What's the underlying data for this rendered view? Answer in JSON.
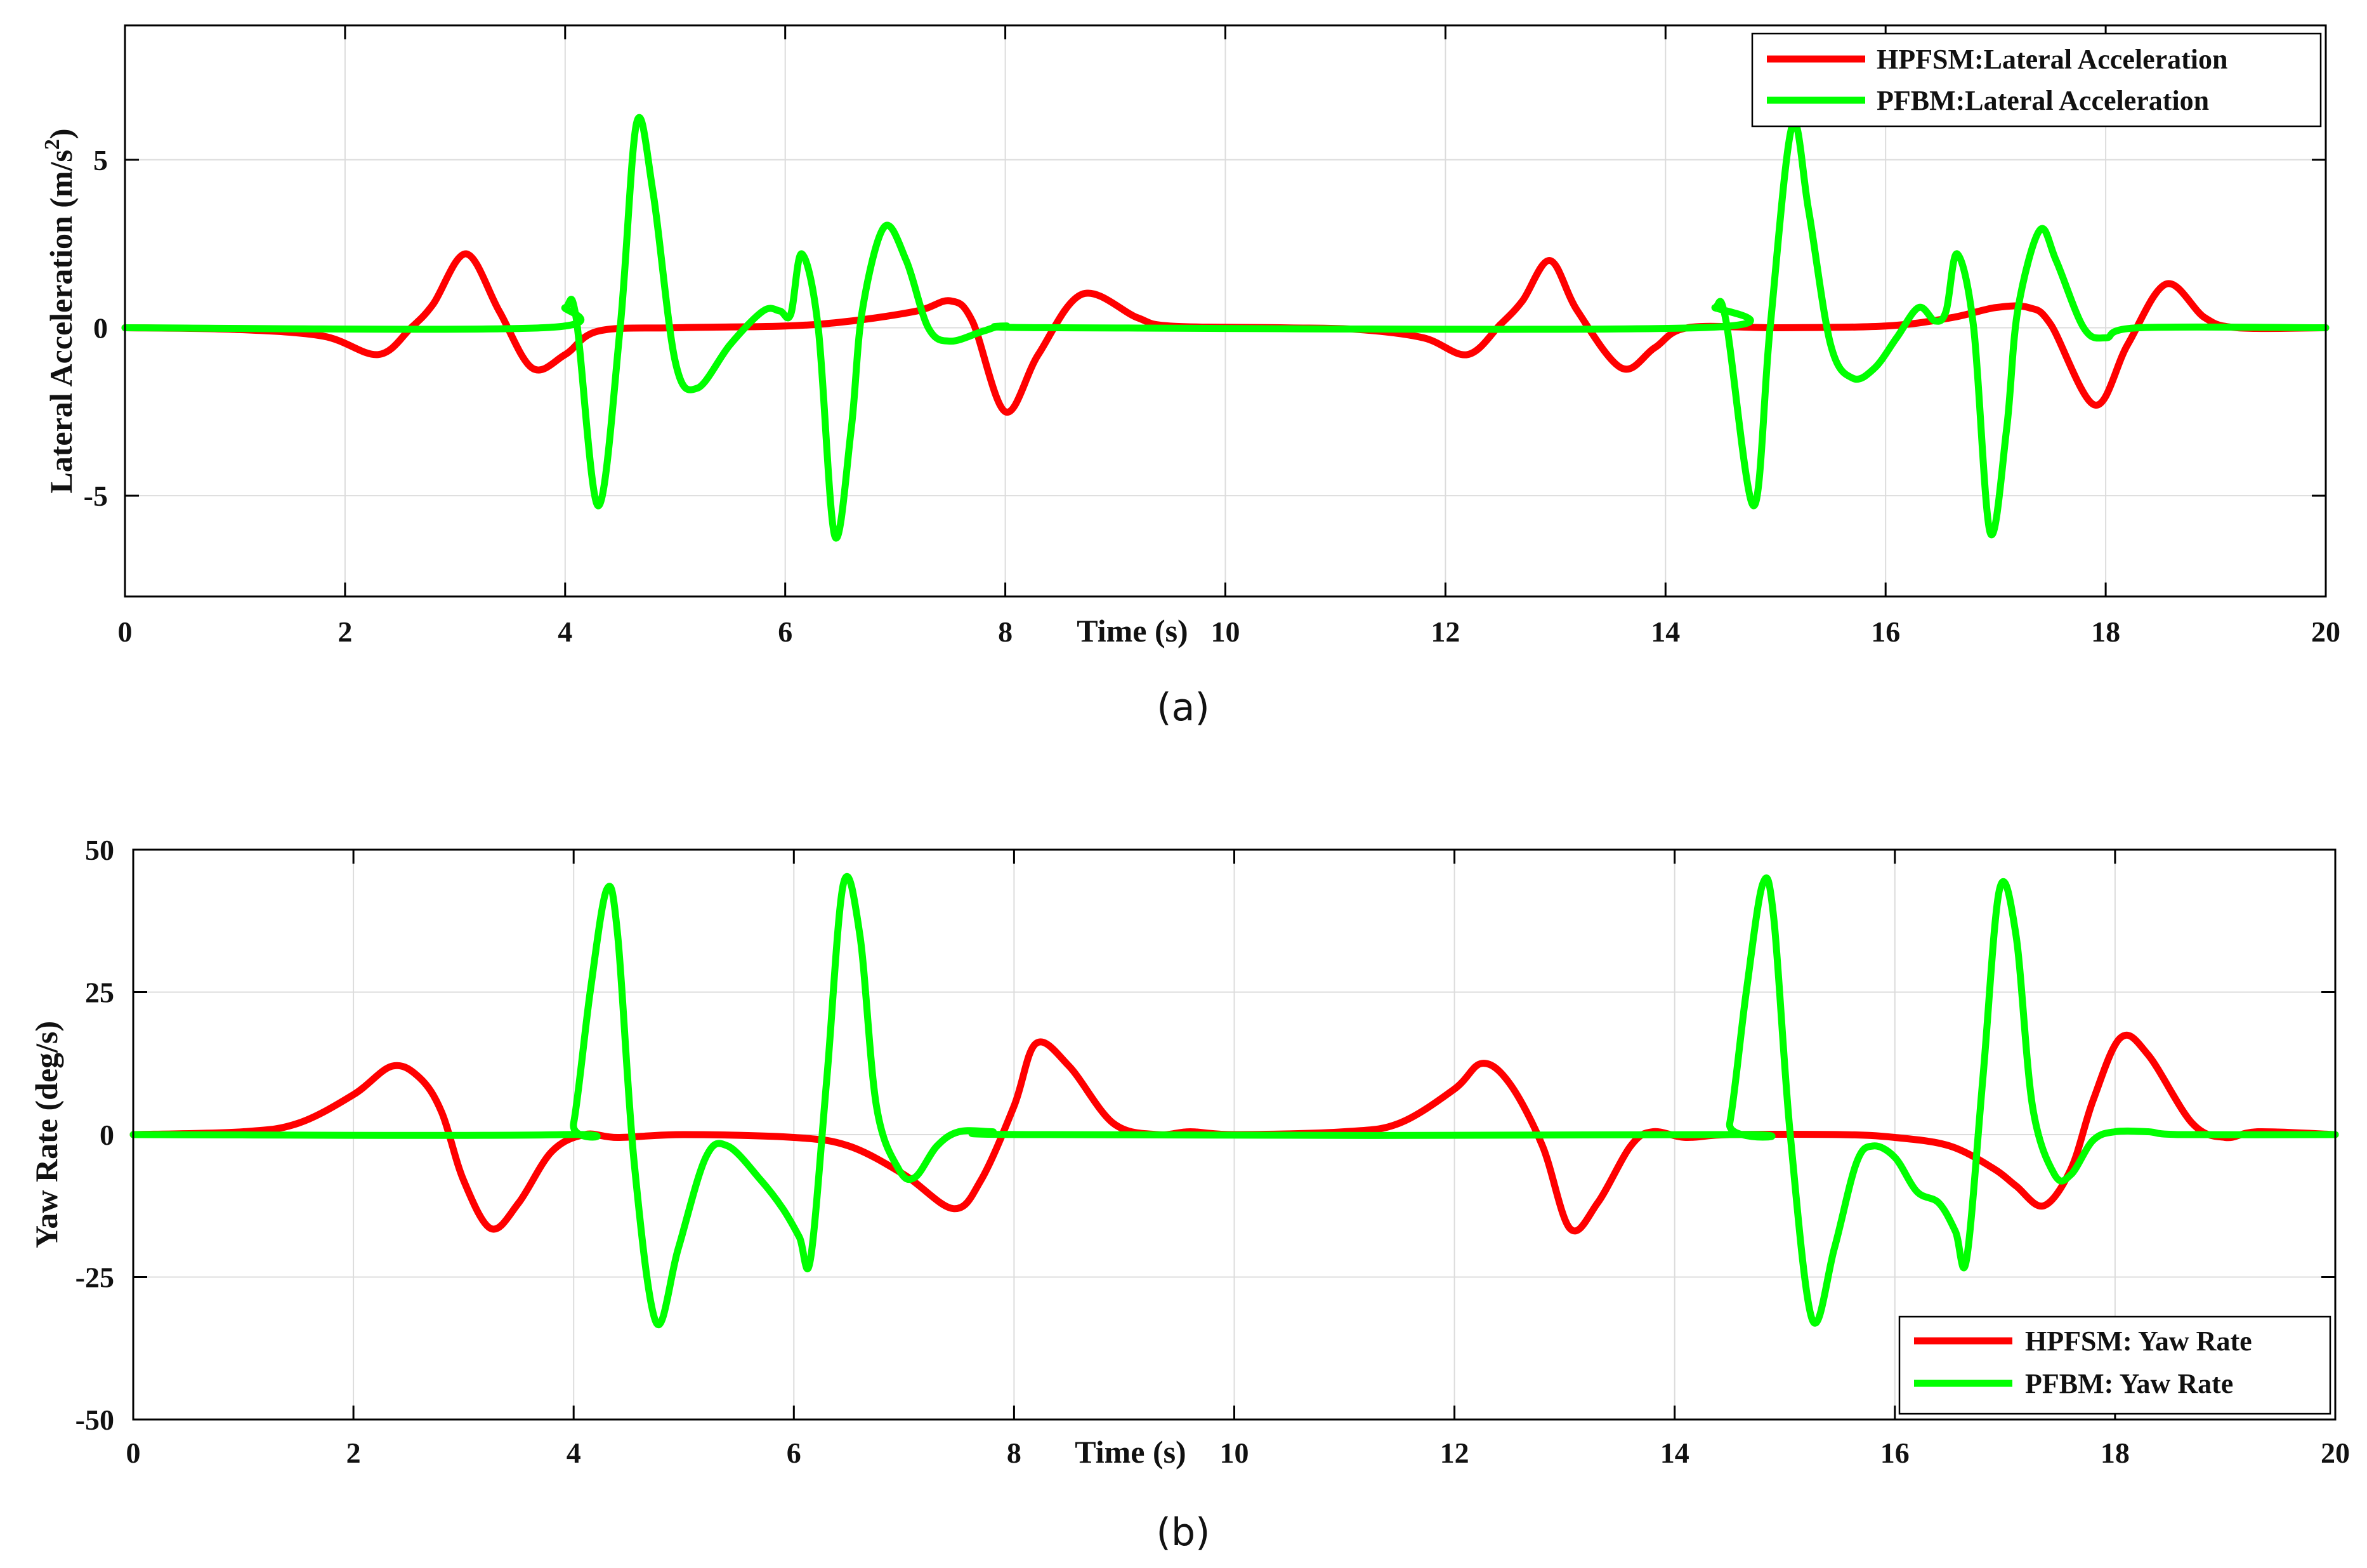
{
  "figure": {
    "caption_a": "(a)",
    "caption_b": "(b)"
  },
  "colors": {
    "hpfsm": "#ff0000",
    "pfbm": "#00ff00",
    "grid": "#dcdcdc",
    "axes": "#000000"
  },
  "chart_data": [
    {
      "type": "line",
      "id": "a",
      "title": "",
      "xlabel": "Time (s)",
      "ylabel_main": "Lateral Acceleration (m/s",
      "ylabel_sup": "2",
      "ylabel_end": ")",
      "xlim": [
        0,
        20
      ],
      "ylim": [
        -8,
        9
      ],
      "xticks": [
        0,
        2,
        4,
        6,
        8,
        10,
        12,
        14,
        16,
        18,
        20
      ],
      "yticks": [
        -5,
        0,
        5
      ],
      "ytick_labels": [
        "-5",
        "0",
        "5"
      ],
      "grid": true,
      "legend_position": "top-right",
      "series": [
        {
          "name": "HPFSM:Lateral Acceleration",
          "color": "#ff0000",
          "points": [
            [
              0,
              0
            ],
            [
              1.0,
              -0.05
            ],
            [
              1.8,
              -0.25
            ],
            [
              2.3,
              -0.8
            ],
            [
              2.6,
              0.0
            ],
            [
              2.8,
              0.7
            ],
            [
              3.1,
              2.2
            ],
            [
              3.4,
              0.5
            ],
            [
              3.7,
              -1.2
            ],
            [
              4.0,
              -0.8
            ],
            [
              4.3,
              -0.1
            ],
            [
              5.0,
              0.0
            ],
            [
              6.0,
              0.05
            ],
            [
              6.6,
              0.2
            ],
            [
              7.2,
              0.5
            ],
            [
              7.5,
              0.8
            ],
            [
              7.7,
              0.2
            ],
            [
              8.0,
              -2.5
            ],
            [
              8.3,
              -0.8
            ],
            [
              8.7,
              1.0
            ],
            [
              9.2,
              0.3
            ],
            [
              9.5,
              0.05
            ],
            [
              10.5,
              0.0
            ],
            [
              11.2,
              -0.05
            ],
            [
              11.8,
              -0.3
            ],
            [
              12.2,
              -0.8
            ],
            [
              12.5,
              0.1
            ],
            [
              12.7,
              0.8
            ],
            [
              12.95,
              2.0
            ],
            [
              13.2,
              0.5
            ],
            [
              13.6,
              -1.2
            ],
            [
              13.9,
              -0.6
            ],
            [
              14.2,
              0.0
            ],
            [
              15.0,
              0.0
            ],
            [
              16.0,
              0.05
            ],
            [
              16.6,
              0.3
            ],
            [
              17.0,
              0.6
            ],
            [
              17.3,
              0.6
            ],
            [
              17.5,
              0.1
            ],
            [
              17.9,
              -2.3
            ],
            [
              18.2,
              -0.5
            ],
            [
              18.55,
              1.3
            ],
            [
              18.9,
              0.3
            ],
            [
              19.2,
              0.0
            ],
            [
              20,
              0.0
            ]
          ]
        },
        {
          "name": "PFBM:Lateral Acceleration",
          "color": "#00ff00",
          "points": [
            [
              0,
              0
            ],
            [
              3.8,
              0.0
            ],
            [
              4.0,
              0.6
            ],
            [
              4.1,
              0.3
            ],
            [
              4.3,
              -5.3
            ],
            [
              4.5,
              0.0
            ],
            [
              4.65,
              6.1
            ],
            [
              4.8,
              4.0
            ],
            [
              5.0,
              -1.0
            ],
            [
              5.2,
              -1.8
            ],
            [
              5.5,
              -0.5
            ],
            [
              5.8,
              0.5
            ],
            [
              5.95,
              0.5
            ],
            [
              6.05,
              0.4
            ],
            [
              6.15,
              2.2
            ],
            [
              6.3,
              0.0
            ],
            [
              6.45,
              -6.2
            ],
            [
              6.6,
              -3.0
            ],
            [
              6.7,
              0.5
            ],
            [
              6.9,
              3.0
            ],
            [
              7.1,
              2.0
            ],
            [
              7.3,
              0.0
            ],
            [
              7.5,
              -0.4
            ],
            [
              7.8,
              -0.1
            ],
            [
              8.0,
              0.05
            ],
            [
              8.5,
              0.0
            ],
            [
              14.3,
              0.0
            ],
            [
              14.45,
              0.6
            ],
            [
              14.55,
              0.2
            ],
            [
              14.8,
              -5.3
            ],
            [
              14.95,
              0.0
            ],
            [
              15.15,
              6.0
            ],
            [
              15.3,
              3.5
            ],
            [
              15.5,
              -0.5
            ],
            [
              15.7,
              -1.5
            ],
            [
              15.9,
              -1.2
            ],
            [
              16.1,
              -0.3
            ],
            [
              16.3,
              0.6
            ],
            [
              16.45,
              0.2
            ],
            [
              16.55,
              0.5
            ],
            [
              16.65,
              2.2
            ],
            [
              16.8,
              0.0
            ],
            [
              16.95,
              -6.1
            ],
            [
              17.1,
              -3.0
            ],
            [
              17.2,
              0.5
            ],
            [
              17.4,
              2.9
            ],
            [
              17.55,
              2.0
            ],
            [
              17.8,
              0.0
            ],
            [
              18.0,
              -0.3
            ],
            [
              18.3,
              0.0
            ],
            [
              20,
              0.0
            ]
          ]
        }
      ]
    },
    {
      "type": "line",
      "id": "b",
      "title": "",
      "xlabel": "Time (s)",
      "ylabel": "Yaw Rate (deg/s)",
      "xlim": [
        0,
        20
      ],
      "ylim": [
        -50,
        50
      ],
      "xticks": [
        0,
        2,
        4,
        6,
        8,
        10,
        12,
        14,
        16,
        18,
        20
      ],
      "yticks": [
        -50,
        -25,
        0,
        25,
        50
      ],
      "ytick_labels": [
        "-50",
        "-25",
        "0",
        "25",
        "50"
      ],
      "grid": true,
      "legend_position": "bottom-right",
      "series": [
        {
          "name": "HPFSM: Yaw Rate",
          "color": "#ff0000",
          "points": [
            [
              0,
              0
            ],
            [
              1.0,
              0.5
            ],
            [
              1.5,
              2.0
            ],
            [
              2.0,
              7.0
            ],
            [
              2.35,
              12.0
            ],
            [
              2.6,
              10.0
            ],
            [
              2.8,
              4.0
            ],
            [
              3.0,
              -8.0
            ],
            [
              3.25,
              -16.5
            ],
            [
              3.5,
              -12.0
            ],
            [
              3.8,
              -3.0
            ],
            [
              4.1,
              0.0
            ],
            [
              4.4,
              -0.5
            ],
            [
              5.0,
              0.0
            ],
            [
              6.0,
              -0.5
            ],
            [
              6.5,
              -2.0
            ],
            [
              7.0,
              -7.0
            ],
            [
              7.45,
              -13.0
            ],
            [
              7.7,
              -8.0
            ],
            [
              8.0,
              5.0
            ],
            [
              8.2,
              16.0
            ],
            [
              8.5,
              12.0
            ],
            [
              8.9,
              2.0
            ],
            [
              9.3,
              0.0
            ],
            [
              9.6,
              0.5
            ],
            [
              10.0,
              0.0
            ],
            [
              11.0,
              0.5
            ],
            [
              11.5,
              2.0
            ],
            [
              12.0,
              8.0
            ],
            [
              12.25,
              12.5
            ],
            [
              12.5,
              9.0
            ],
            [
              12.8,
              -2.0
            ],
            [
              13.05,
              -16.5
            ],
            [
              13.3,
              -12.0
            ],
            [
              13.6,
              -2.0
            ],
            [
              13.8,
              0.5
            ],
            [
              14.1,
              -0.5
            ],
            [
              14.5,
              0.0
            ],
            [
              15.5,
              0.0
            ],
            [
              16.0,
              -0.5
            ],
            [
              16.5,
              -2.0
            ],
            [
              16.9,
              -6.0
            ],
            [
              17.1,
              -9.0
            ],
            [
              17.35,
              -12.5
            ],
            [
              17.6,
              -6.0
            ],
            [
              17.8,
              6.0
            ],
            [
              18.05,
              17.0
            ],
            [
              18.3,
              14.0
            ],
            [
              18.7,
              2.0
            ],
            [
              19.0,
              -0.5
            ],
            [
              19.3,
              0.5
            ],
            [
              20,
              0.0
            ]
          ]
        },
        {
          "name": "PFBM: Yaw Rate",
          "color": "#00ff00",
          "points": [
            [
              0,
              0
            ],
            [
              3.9,
              0.0
            ],
            [
              4.0,
              2.0
            ],
            [
              4.15,
              25.0
            ],
            [
              4.3,
              43.0
            ],
            [
              4.4,
              35.0
            ],
            [
              4.55,
              -5.0
            ],
            [
              4.75,
              -33.0
            ],
            [
              4.95,
              -20.0
            ],
            [
              5.2,
              -4.0
            ],
            [
              5.4,
              -2.0
            ],
            [
              5.7,
              -8.0
            ],
            [
              5.9,
              -13.0
            ],
            [
              6.05,
              -18.0
            ],
            [
              6.15,
              -22.0
            ],
            [
              6.3,
              10.0
            ],
            [
              6.45,
              44.0
            ],
            [
              6.6,
              35.0
            ],
            [
              6.75,
              5.0
            ],
            [
              6.95,
              -6.0
            ],
            [
              7.1,
              -7.5
            ],
            [
              7.3,
              -2.0
            ],
            [
              7.5,
              0.5
            ],
            [
              7.8,
              0.5
            ],
            [
              8.2,
              0.0
            ],
            [
              14.4,
              0.0
            ],
            [
              14.5,
              2.0
            ],
            [
              14.65,
              25.0
            ],
            [
              14.8,
              44.0
            ],
            [
              14.9,
              38.0
            ],
            [
              15.05,
              0.0
            ],
            [
              15.25,
              -32.5
            ],
            [
              15.45,
              -20.0
            ],
            [
              15.65,
              -5.0
            ],
            [
              15.8,
              -2.0
            ],
            [
              16.0,
              -4.0
            ],
            [
              16.2,
              -10.0
            ],
            [
              16.4,
              -12.0
            ],
            [
              16.55,
              -17.0
            ],
            [
              16.65,
              -22.0
            ],
            [
              16.8,
              10.0
            ],
            [
              16.95,
              43.0
            ],
            [
              17.1,
              35.0
            ],
            [
              17.25,
              5.0
            ],
            [
              17.45,
              -7.0
            ],
            [
              17.6,
              -7.0
            ],
            [
              17.8,
              -1.0
            ],
            [
              18.0,
              0.5
            ],
            [
              18.3,
              0.5
            ],
            [
              18.6,
              0.0
            ],
            [
              20,
              0.0
            ]
          ]
        }
      ]
    }
  ]
}
